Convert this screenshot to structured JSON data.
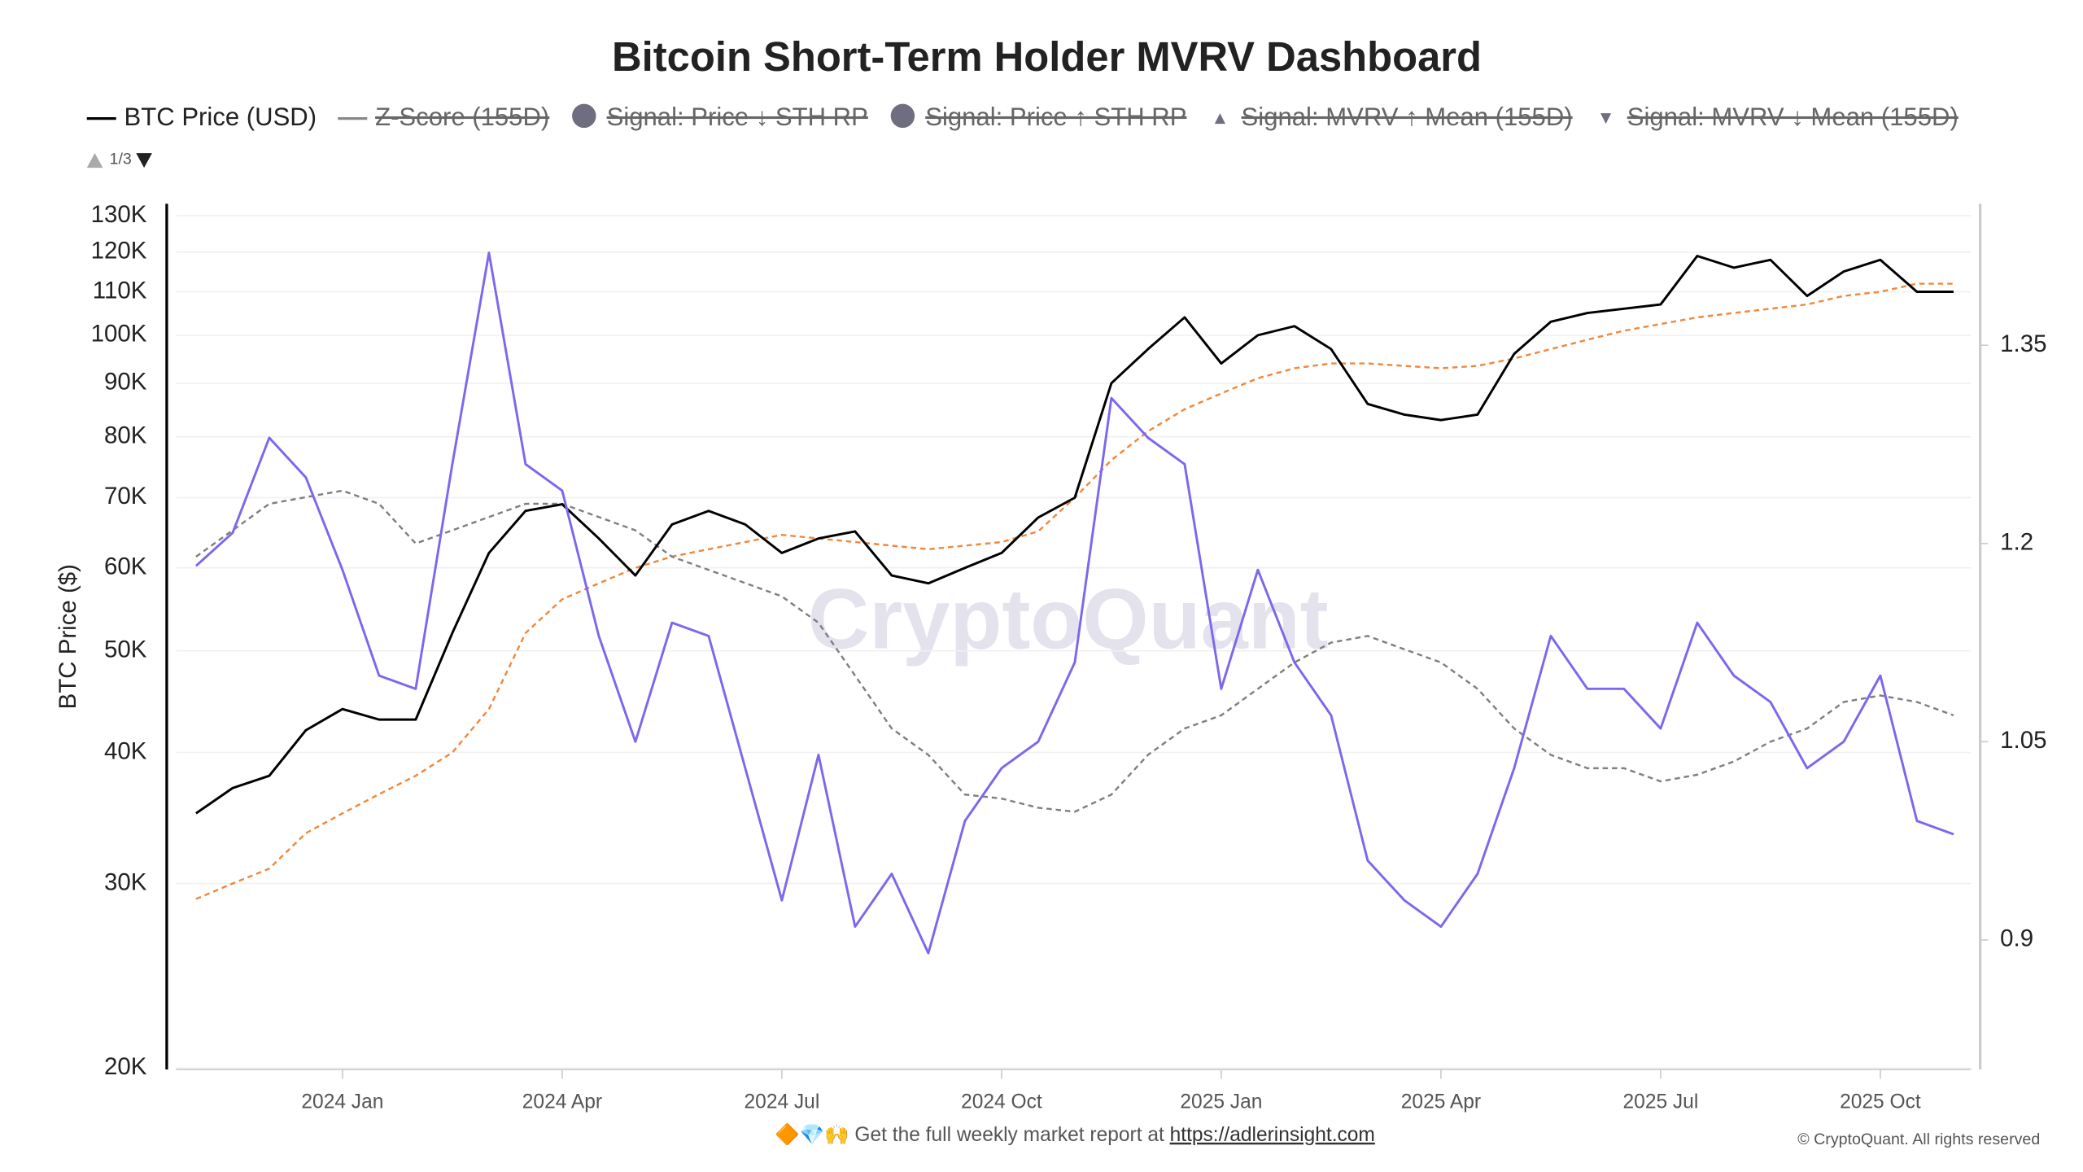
{
  "chart_data": {
    "type": "line",
    "title": "Bitcoin Short-Term Holder MVRV Dashboard",
    "ylabel": "BTC Price ($)",
    "watermark": "CryptoQuant",
    "footer_text": "🔶💎🙌 Get the full weekly market report at ",
    "footer_link": "https://adlerinsight.com",
    "copyright": "© CryptoQuant. All rights reserved",
    "legend_page": "1/3",
    "log_y": true,
    "grid": true,
    "categories": [
      null,
      null,
      null,
      null,
      "2024 Jan",
      null,
      null,
      null,
      null,
      null,
      "2024 Apr",
      null,
      null,
      null,
      null,
      null,
      "2024 Jul",
      null,
      null,
      null,
      null,
      null,
      "2024 Oct",
      null,
      null,
      null,
      null,
      null,
      "2025 Jan",
      null,
      null,
      null,
      null,
      null,
      "2025 Apr",
      null,
      null,
      null,
      null,
      null,
      "2025 Jul",
      null,
      null,
      null,
      null,
      null,
      "2025 Oct",
      null,
      null
    ],
    "series": [
      {
        "name": "BTC Price (USD)",
        "color": "#000000",
        "axis": "y",
        "dashed": false,
        "values": [
          35000,
          37000,
          38000,
          42000,
          44000,
          43000,
          43000,
          52000,
          62000,
          68000,
          69000,
          64000,
          59000,
          66000,
          68000,
          66000,
          62000,
          64000,
          65000,
          59000,
          58000,
          60000,
          62000,
          67000,
          70000,
          90000,
          97000,
          104000,
          94000,
          100000,
          102000,
          97000,
          86000,
          84000,
          83000,
          84000,
          96000,
          103000,
          105000,
          106000,
          107000,
          119000,
          116000,
          118000,
          109000,
          115000,
          118000,
          110000,
          110000
        ]
      },
      {
        "color": "#f0883e",
        "axis": "y",
        "dashed": true,
        "values": [
          29000,
          30000,
          31000,
          33500,
          35000,
          36500,
          38000,
          40000,
          44000,
          52000,
          56000,
          58000,
          60000,
          61500,
          62500,
          63500,
          64500,
          64000,
          63500,
          63000,
          62500,
          63000,
          63500,
          65000,
          70000,
          76000,
          81000,
          85000,
          88000,
          91000,
          93000,
          94000,
          94000,
          93500,
          93000,
          93500,
          95000,
          97000,
          99000,
          101000,
          102500,
          104000,
          105000,
          106000,
          107000,
          109000,
          110000,
          112000,
          112000
        ]
      },
      {
        "color": "#7b68ee",
        "axis": "y2",
        "dashed": false,
        "values": [
          1.183,
          1.208,
          1.28,
          1.25,
          1.18,
          1.1,
          1.09,
          1.26,
          1.42,
          1.26,
          1.24,
          1.13,
          1.05,
          1.14,
          1.13,
          1.03,
          0.93,
          1.04,
          0.91,
          0.95,
          0.89,
          0.99,
          1.03,
          1.05,
          1.11,
          1.31,
          1.28,
          1.26,
          1.09,
          1.18,
          1.11,
          1.07,
          0.96,
          0.93,
          0.91,
          0.95,
          1.03,
          1.13,
          1.09,
          1.09,
          1.06,
          1.14,
          1.1,
          1.08,
          1.03,
          1.05,
          1.1,
          0.99,
          0.98
        ]
      },
      {
        "color": "#808080",
        "axis": "y2",
        "dashed": true,
        "values": [
          1.19,
          1.21,
          1.23,
          1.235,
          1.24,
          1.23,
          1.2,
          1.21,
          1.22,
          1.23,
          1.23,
          1.22,
          1.21,
          1.19,
          1.18,
          1.17,
          1.16,
          1.14,
          1.1,
          1.06,
          1.04,
          1.01,
          1.007,
          1.0,
          0.997,
          1.01,
          1.04,
          1.06,
          1.07,
          1.09,
          1.11,
          1.125,
          1.13,
          1.12,
          1.11,
          1.09,
          1.06,
          1.04,
          1.03,
          1.03,
          1.02,
          1.025,
          1.035,
          1.05,
          1.06,
          1.08,
          1.085,
          1.08,
          1.07
        ]
      }
    ],
    "legend_hidden": [
      {
        "name": "Z-Score (155D)",
        "color": "#888888",
        "symbol": "line"
      },
      {
        "name": "Signal: Price ↓ STH RP",
        "color": "#6e6e80",
        "symbol": "circle"
      },
      {
        "name": "Signal: Price ↑ STH RP",
        "color": "#6e6e80",
        "symbol": "circle"
      },
      {
        "name": "Signal: MVRV ↑ Mean (155D)",
        "color": "#6e6e80",
        "symbol": "triangle-up"
      },
      {
        "name": "Signal: MVRV ↓ Mean (155D)",
        "color": "#6e6e80",
        "symbol": "triangle-down"
      }
    ],
    "ylim": [
      20000,
      130000
    ],
    "yticks": [
      {
        "value": 20000,
        "label": "20K"
      },
      {
        "value": 30000,
        "label": "30K"
      },
      {
        "value": 40000,
        "label": "40K"
      },
      {
        "value": 50000,
        "label": "50K"
      },
      {
        "value": 60000,
        "label": "60K"
      },
      {
        "value": 70000,
        "label": "70K"
      },
      {
        "value": 80000,
        "label": "80K"
      },
      {
        "value": 90000,
        "label": "90K"
      },
      {
        "value": 100000,
        "label": "100K"
      },
      {
        "value": 110000,
        "label": "110K"
      },
      {
        "value": 120000,
        "label": "120K"
      },
      {
        "value": 130000,
        "label": "130K"
      }
    ],
    "y2lim": [
      0.803,
      1.448
    ],
    "y2ticks": [
      0.9,
      1.05,
      1.2,
      1.35
    ]
  }
}
